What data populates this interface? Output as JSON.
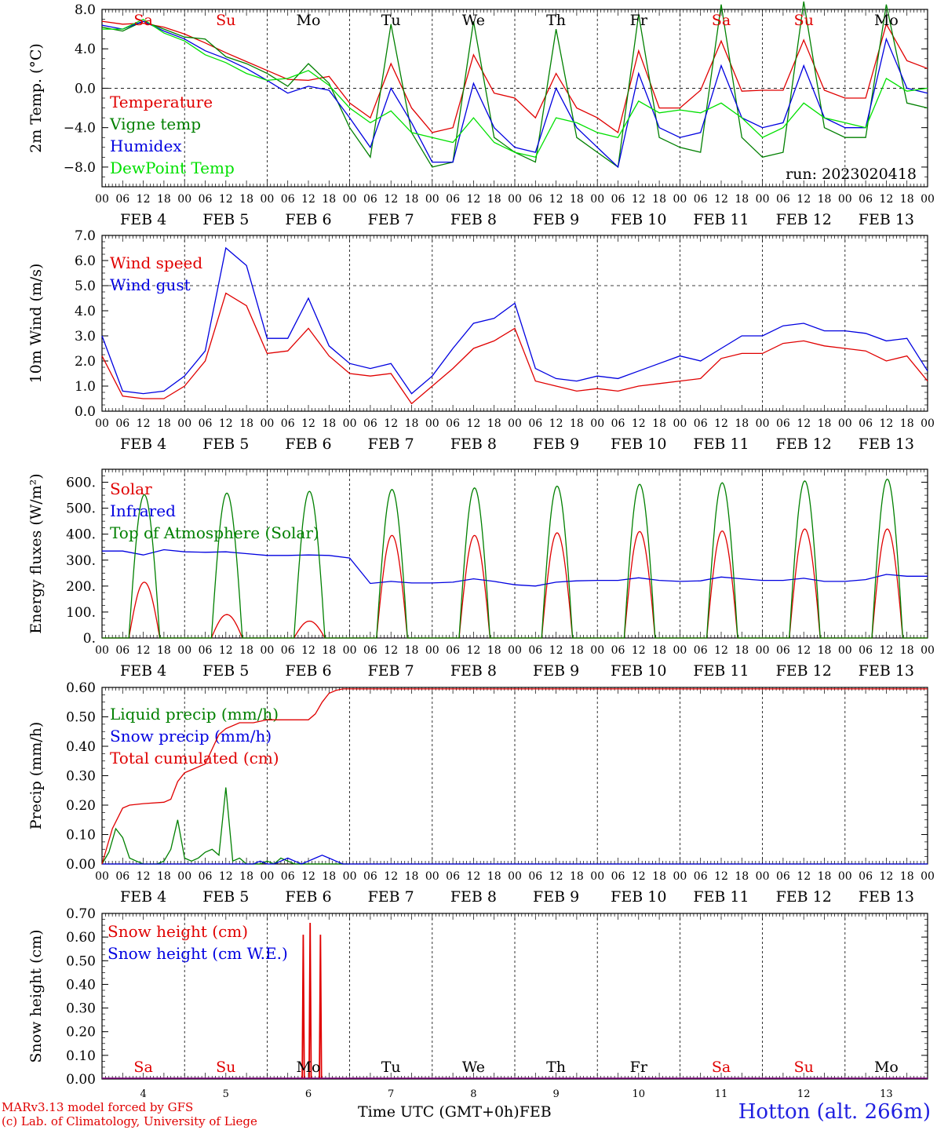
{
  "colors": {
    "red": "#e00000",
    "green": "#008000",
    "blue": "#0000e0",
    "lightgreen": "#00e000",
    "black": "#000000"
  },
  "days": [
    {
      "abbr": "Sa",
      "num": "4",
      "weekend": true
    },
    {
      "abbr": "Su",
      "num": "5",
      "weekend": true
    },
    {
      "abbr": "Mo",
      "num": "6",
      "weekend": false
    },
    {
      "abbr": "Tu",
      "num": "7",
      "weekend": false
    },
    {
      "abbr": "We",
      "num": "8",
      "weekend": false
    },
    {
      "abbr": "Th",
      "num": "9",
      "weekend": false
    },
    {
      "abbr": "Fr",
      "num": "10",
      "weekend": false
    },
    {
      "abbr": "Sa",
      "num": "11",
      "weekend": true
    },
    {
      "abbr": "Su",
      "num": "12",
      "weekend": true
    },
    {
      "abbr": "Mo",
      "num": "13",
      "weekend": false
    }
  ],
  "hour_ticks": [
    "00",
    "06",
    "12",
    "18"
  ],
  "final_hour_tick": "00",
  "month": "FEB",
  "footer": {
    "credit_line1": "MARv3.13 model forced by GFS",
    "credit_line2": "(c) Lab. of Climatology, University of Liege",
    "xlabel": "Time UTC (GMT+0h)",
    "xlabel_month": "FEB",
    "station": "Hotton (alt. 266m)"
  },
  "chart_data": [
    {
      "type": "line",
      "ylabel": "2m Temp. (°C)",
      "ylim": [
        -10,
        8
      ],
      "ytick_values": [
        -8,
        -4,
        0,
        4,
        8
      ],
      "ytick_labels": [
        "−8.0",
        "−4.0",
        "0.0",
        "4.0",
        "8.0"
      ],
      "reference_line": 0,
      "annotation": "run: 2023020418",
      "x_unit": "hours since FEB 4 00 UTC",
      "series": [
        {
          "name": "Temperature",
          "color": "#e00000",
          "x": [
            0,
            6,
            12,
            18,
            24,
            30,
            36,
            42,
            48,
            54,
            60,
            66,
            72,
            78,
            84,
            90,
            96,
            102,
            108,
            114,
            120,
            126,
            132,
            138,
            144,
            150,
            156,
            162,
            168,
            174,
            180,
            186,
            192,
            198,
            204,
            210,
            216,
            222,
            228,
            234,
            240
          ],
          "y": [
            6.8,
            6.5,
            6.6,
            6.2,
            5.5,
            4.6,
            3.6,
            2.7,
            1.8,
            0.9,
            0.8,
            1.2,
            -1.5,
            -3.0,
            2.5,
            -2.0,
            -4.5,
            -4.0,
            3.4,
            -0.5,
            -1.0,
            -3.0,
            1.5,
            -2.0,
            -3.0,
            -4.5,
            3.8,
            -2.0,
            -2.0,
            -0.2,
            4.8,
            -0.3,
            -0.2,
            -0.2,
            4.9,
            -0.2,
            -1.0,
            -1.0,
            6.5,
            2.8,
            2.0
          ]
        },
        {
          "name": "Vigne temp",
          "color": "#008000",
          "x": [
            0,
            6,
            12,
            18,
            24,
            30,
            36,
            42,
            48,
            54,
            60,
            66,
            72,
            78,
            84,
            90,
            96,
            102,
            108,
            114,
            120,
            126,
            132,
            138,
            144,
            150,
            156,
            162,
            168,
            174,
            180,
            186,
            192,
            198,
            204,
            210,
            216,
            222,
            228,
            234,
            240
          ],
          "y": [
            6.2,
            5.8,
            6.8,
            6.0,
            5.2,
            5.0,
            3.2,
            2.5,
            1.5,
            0.2,
            2.5,
            0.5,
            -4.0,
            -7.0,
            6.5,
            -4.5,
            -8.0,
            -7.5,
            6.8,
            -5.0,
            -6.5,
            -7.5,
            6.0,
            -5.0,
            -6.5,
            -8.0,
            7.5,
            -5.0,
            -6.0,
            -6.5,
            8.5,
            -5.0,
            -7.0,
            -6.5,
            8.8,
            -4.0,
            -5.0,
            -5.0,
            8.5,
            -1.5,
            -2.0
          ]
        },
        {
          "name": "Humidex",
          "color": "#0000e0",
          "x": [
            0,
            6,
            12,
            18,
            24,
            30,
            36,
            42,
            48,
            54,
            60,
            66,
            72,
            78,
            84,
            90,
            96,
            102,
            108,
            114,
            120,
            126,
            132,
            138,
            144,
            150,
            156,
            162,
            168,
            174,
            180,
            186,
            192,
            198,
            204,
            210,
            216,
            222,
            228,
            234,
            240
          ],
          "y": [
            6.4,
            6.0,
            6.8,
            5.8,
            5.0,
            3.8,
            3.0,
            2.0,
            0.8,
            -0.5,
            0.2,
            -0.2,
            -3.0,
            -6.0,
            0.0,
            -3.5,
            -7.5,
            -7.5,
            0.5,
            -4.0,
            -6.0,
            -6.5,
            0.0,
            -4.0,
            -6.0,
            -8.0,
            1.5,
            -4.0,
            -5.0,
            -4.5,
            2.3,
            -3.0,
            -4.0,
            -3.5,
            2.3,
            -3.0,
            -4.0,
            -4.0,
            5.0,
            0.0,
            -0.5
          ]
        },
        {
          "name": "DewPoint Temp",
          "color": "#00e000",
          "x": [
            0,
            6,
            12,
            18,
            24,
            30,
            36,
            42,
            48,
            54,
            60,
            66,
            72,
            78,
            84,
            90,
            96,
            102,
            108,
            114,
            120,
            126,
            132,
            138,
            144,
            150,
            156,
            162,
            168,
            174,
            180,
            186,
            192,
            198,
            204,
            210,
            216,
            222,
            228,
            234,
            240
          ],
          "y": [
            6.0,
            6.0,
            7.0,
            5.6,
            4.8,
            3.4,
            2.6,
            1.5,
            0.8,
            1.0,
            1.8,
            0.3,
            -2.0,
            -3.5,
            -2.3,
            -4.5,
            -5.0,
            -5.5,
            -3.0,
            -5.5,
            -6.5,
            -7.0,
            -3.0,
            -3.5,
            -4.5,
            -5.0,
            -1.3,
            -2.5,
            -2.2,
            -2.5,
            -1.5,
            -3.0,
            -5.0,
            -4.0,
            -1.5,
            -3.0,
            -3.5,
            -4.0,
            1.0,
            -0.3,
            0.0
          ]
        }
      ]
    },
    {
      "type": "line",
      "ylabel": "10m Wind (m/s)",
      "ylim": [
        0,
        7
      ],
      "ytick_values": [
        0,
        1,
        2,
        3,
        4,
        5,
        6,
        7
      ],
      "ytick_labels": [
        "0.0",
        "1.0",
        "2.0",
        "3.0",
        "4.0",
        "5.0",
        "6.0",
        "7.0"
      ],
      "reference_line": 5,
      "x_unit": "hours since FEB 4 00 UTC",
      "series": [
        {
          "name": "Wind speed",
          "color": "#e00000",
          "x": [
            0,
            6,
            12,
            18,
            24,
            30,
            36,
            42,
            48,
            54,
            60,
            66,
            72,
            78,
            84,
            90,
            96,
            102,
            108,
            114,
            120,
            126,
            132,
            138,
            144,
            150,
            156,
            162,
            168,
            174,
            180,
            186,
            192,
            198,
            204,
            210,
            216,
            222,
            228,
            234,
            240
          ],
          "y": [
            2.2,
            0.6,
            0.5,
            0.5,
            1.0,
            2.0,
            4.7,
            4.2,
            2.3,
            2.4,
            3.3,
            2.2,
            1.5,
            1.4,
            1.5,
            0.3,
            1.0,
            1.7,
            2.5,
            2.8,
            3.3,
            1.2,
            1.0,
            0.8,
            0.9,
            0.8,
            1.0,
            1.1,
            1.2,
            1.3,
            2.1,
            2.3,
            2.3,
            2.7,
            2.8,
            2.6,
            2.5,
            2.4,
            2.0,
            2.2,
            1.2
          ]
        },
        {
          "name": "Wind gust",
          "color": "#0000e0",
          "x": [
            0,
            6,
            12,
            18,
            24,
            30,
            36,
            42,
            48,
            54,
            60,
            66,
            72,
            78,
            84,
            90,
            96,
            102,
            108,
            114,
            120,
            126,
            132,
            138,
            144,
            150,
            156,
            162,
            168,
            174,
            180,
            186,
            192,
            198,
            204,
            210,
            216,
            222,
            228,
            234,
            240
          ],
          "y": [
            3.0,
            0.8,
            0.7,
            0.8,
            1.4,
            2.4,
            6.5,
            5.8,
            2.9,
            2.9,
            4.5,
            2.6,
            1.9,
            1.7,
            1.9,
            0.7,
            1.4,
            2.5,
            3.5,
            3.7,
            4.3,
            1.7,
            1.3,
            1.2,
            1.4,
            1.3,
            1.6,
            1.9,
            2.2,
            2.0,
            2.5,
            3.0,
            3.0,
            3.4,
            3.5,
            3.2,
            3.2,
            3.1,
            2.8,
            2.9,
            1.6
          ]
        }
      ]
    },
    {
      "type": "line",
      "ylabel": "Energy fluxes (W/m²)",
      "ylim": [
        0,
        650
      ],
      "ytick_values": [
        0,
        100,
        200,
        300,
        400,
        500,
        600
      ],
      "ytick_labels": [
        "0.",
        "100.",
        "200.",
        "300.",
        "400.",
        "500.",
        "600."
      ],
      "x_unit": "hours since FEB 4 00 UTC",
      "sunrise_h": 7.8,
      "sunset_h": 16.8,
      "series": [
        {
          "name": "Solar",
          "color": "#e00000",
          "peaks": [
            215,
            90,
            65,
            395,
            395,
            405,
            410,
            412,
            420,
            420
          ]
        },
        {
          "name": "Infrared",
          "color": "#0000e0",
          "x": [
            0,
            6,
            12,
            18,
            24,
            30,
            36,
            42,
            48,
            54,
            60,
            66,
            72,
            78,
            84,
            90,
            96,
            102,
            108,
            114,
            120,
            126,
            132,
            138,
            144,
            150,
            156,
            162,
            168,
            174,
            180,
            186,
            192,
            198,
            204,
            210,
            216,
            222,
            228,
            234,
            240
          ],
          "y": [
            335,
            335,
            320,
            340,
            332,
            330,
            332,
            325,
            318,
            318,
            320,
            318,
            308,
            210,
            218,
            212,
            212,
            215,
            228,
            218,
            205,
            200,
            215,
            220,
            222,
            222,
            232,
            222,
            218,
            220,
            235,
            228,
            222,
            222,
            230,
            218,
            218,
            225,
            245,
            238,
            238
          ]
        },
        {
          "name": "Top of Atmosphere (Solar)",
          "color": "#008000",
          "peaks": [
            552,
            558,
            565,
            572,
            578,
            585,
            592,
            598,
            605,
            612
          ]
        }
      ]
    },
    {
      "type": "line",
      "ylabel": "Precip (mm/h)",
      "ylim": [
        0,
        0.6
      ],
      "ytick_values": [
        0,
        0.1,
        0.2,
        0.3,
        0.4,
        0.5,
        0.6
      ],
      "ytick_labels": [
        "0.00",
        "0.10",
        "0.20",
        "0.30",
        "0.40",
        "0.50",
        "0.60"
      ],
      "x_unit": "hours since FEB 4 00 UTC",
      "series": [
        {
          "name": "Liquid precip (mm/h)",
          "color": "#008000",
          "x": [
            0,
            2,
            4,
            6,
            8,
            10,
            12,
            14,
            16,
            18,
            20,
            22,
            24,
            26,
            28,
            30,
            32,
            34,
            36,
            38,
            40,
            42,
            44,
            46,
            48,
            50,
            52,
            54,
            56,
            58,
            60,
            62,
            64,
            66,
            68,
            72
          ],
          "y": [
            0.0,
            0.04,
            0.12,
            0.09,
            0.02,
            0.01,
            0.0,
            0.0,
            0.0,
            0.01,
            0.05,
            0.15,
            0.02,
            0.01,
            0.02,
            0.04,
            0.05,
            0.03,
            0.26,
            0.01,
            0.02,
            0.0,
            0.0,
            0.0,
            0.01,
            0.0,
            0.02,
            0.01,
            0.0,
            0.0,
            0.0,
            0.0,
            0.0,
            0.0,
            0.0,
            0.0
          ]
        },
        {
          "name": "Snow precip (mm/h)",
          "color": "#0000e0",
          "x": [
            0,
            44,
            46,
            48,
            50,
            52,
            54,
            56,
            58,
            60,
            62,
            64,
            66,
            68,
            70,
            72,
            240
          ],
          "y": [
            0,
            0,
            0.01,
            0.0,
            0.0,
            0.01,
            0.02,
            0.01,
            0.0,
            0.01,
            0.02,
            0.03,
            0.02,
            0.01,
            0.0,
            0.0,
            0
          ]
        },
        {
          "name": "Total cumulated (cm)",
          "color": "#e00000",
          "x": [
            0,
            3,
            6,
            8,
            12,
            18,
            20,
            22,
            24,
            26,
            30,
            34,
            36,
            40,
            44,
            48,
            52,
            56,
            60,
            62,
            64,
            66,
            68,
            70,
            72,
            240
          ],
          "y": [
            0.0,
            0.12,
            0.19,
            0.2,
            0.205,
            0.21,
            0.22,
            0.28,
            0.31,
            0.32,
            0.34,
            0.44,
            0.46,
            0.48,
            0.48,
            0.49,
            0.49,
            0.49,
            0.49,
            0.51,
            0.55,
            0.58,
            0.59,
            0.595,
            0.595,
            0.595
          ]
        }
      ]
    },
    {
      "type": "line",
      "ylabel": "Snow height (cm)",
      "ylim": [
        0,
        0.7
      ],
      "ytick_values": [
        0,
        0.1,
        0.2,
        0.3,
        0.4,
        0.5,
        0.6,
        0.7
      ],
      "ytick_labels": [
        "0.00",
        "0.10",
        "0.20",
        "0.30",
        "0.40",
        "0.50",
        "0.60",
        "0.70"
      ],
      "x_unit": "hours since FEB 4 00 UTC",
      "series": [
        {
          "name": "Snow height (cm)",
          "color": "#e00000",
          "spikes": [
            {
              "x": 58.5,
              "y": 0.61
            },
            {
              "x": 60.5,
              "y": 0.66
            },
            {
              "x": 63.5,
              "y": 0.61
            }
          ]
        },
        {
          "name": "Snow height (cm W.E.)",
          "color": "#0000e0",
          "spikes": []
        }
      ]
    }
  ]
}
